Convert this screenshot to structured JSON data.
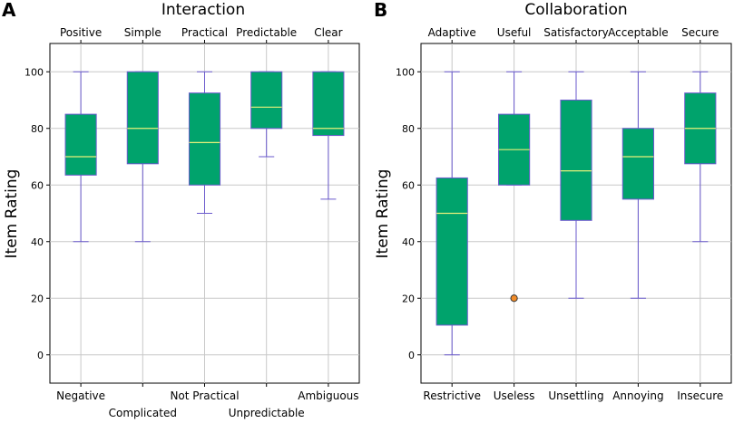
{
  "colors": {
    "box_fill": "#00a36c",
    "box_edge": "#6a5acd",
    "whisker": "#6a5acd",
    "median": "#e6f07a",
    "grid": "#c8c8c8",
    "outlier_fill": "#f28c28",
    "outlier_edge": "#333333"
  },
  "chart_data": [
    {
      "type": "box",
      "panel": "A",
      "title": "Interaction",
      "ylabel": "Item Rating",
      "ylim": [
        -10,
        110
      ],
      "yticks": [
        0,
        20,
        40,
        60,
        80,
        100
      ],
      "grid": true,
      "items": [
        {
          "top_label": "Positive",
          "bottom_label": "Negative",
          "bottom_row": 1,
          "min": 40,
          "q1": 63.5,
          "median": 70,
          "q3": 85,
          "max": 100,
          "outliers": []
        },
        {
          "top_label": "Simple",
          "bottom_label": "Complicated",
          "bottom_row": 2,
          "min": 40,
          "q1": 67.5,
          "median": 80,
          "q3": 100,
          "max": 100,
          "outliers": []
        },
        {
          "top_label": "Practical",
          "bottom_label": "Not Practical",
          "bottom_row": 1,
          "min": 50,
          "q1": 60,
          "median": 75,
          "q3": 92.5,
          "max": 100,
          "outliers": []
        },
        {
          "top_label": "Predictable",
          "bottom_label": "Unpredictable",
          "bottom_row": 2,
          "min": 70,
          "q1": 80,
          "median": 87.5,
          "q3": 100,
          "max": 100,
          "outliers": []
        },
        {
          "top_label": "Clear",
          "bottom_label": "Ambiguous",
          "bottom_row": 1,
          "min": 55,
          "q1": 77.5,
          "median": 80,
          "q3": 100,
          "max": 100,
          "outliers": []
        }
      ]
    },
    {
      "type": "box",
      "panel": "B",
      "title": "Collaboration",
      "ylabel": "Item Rating",
      "ylim": [
        -10,
        110
      ],
      "yticks": [
        0,
        20,
        40,
        60,
        80,
        100
      ],
      "grid": true,
      "items": [
        {
          "top_label": "Adaptive",
          "bottom_label": "Restrictive",
          "bottom_row": 1,
          "min": 0,
          "q1": 10.5,
          "median": 50,
          "q3": 62.5,
          "max": 100,
          "outliers": []
        },
        {
          "top_label": "Useful",
          "bottom_label": "Useless",
          "bottom_row": 1,
          "min": 60,
          "q1": 60,
          "median": 72.5,
          "q3": 85,
          "max": 100,
          "outliers": [
            20
          ]
        },
        {
          "top_label": "Satisfactory",
          "bottom_label": "Unsettling",
          "bottom_row": 1,
          "min": 20,
          "q1": 47.5,
          "median": 65,
          "q3": 90,
          "max": 100,
          "outliers": []
        },
        {
          "top_label": "Acceptable",
          "bottom_label": "Annoying",
          "bottom_row": 1,
          "min": 20,
          "q1": 55,
          "median": 70,
          "q3": 80,
          "max": 100,
          "outliers": []
        },
        {
          "top_label": "Secure",
          "bottom_label": "Insecure",
          "bottom_row": 1,
          "min": 40,
          "q1": 67.5,
          "median": 80,
          "q3": 92.5,
          "max": 100,
          "outliers": []
        }
      ]
    }
  ]
}
